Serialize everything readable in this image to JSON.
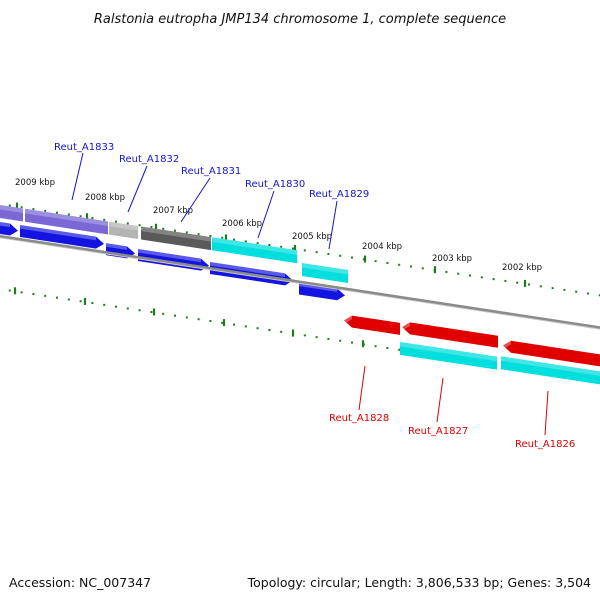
{
  "title": "Ralstonia eutropha JMP134 chromosome 1, complete sequence",
  "footer": {
    "accession": "Accession: NC_007347",
    "summary": "Topology: circular; Length: 3,806,533 bp; Genes: 3,504"
  },
  "colors": {
    "backbone": "#8a8a8a",
    "tick": "#1e7a1e",
    "forward_label": "#1414c8",
    "reverse_label": "#dc0000",
    "gene_blue": "#1414e0",
    "gene_cyan": "#00dede",
    "gene_red": "#e00000",
    "cog_purple": "#7b68d6",
    "cog_light_gray": "#b4b4b4",
    "cog_dark_gray": "#5a5a5a"
  },
  "scale_labels": [
    "2009 kbp",
    "2008 kbp",
    "2007 kbp",
    "2006 kbp",
    "2005 kbp",
    "2004 kbp",
    "2003 kbp",
    "2002 kbp"
  ],
  "forward_genes": [
    {
      "name": "Reut_A1833",
      "color": "gene_blue",
      "cog": "cog_purple"
    },
    {
      "name": "Reut_A1832",
      "color": "gene_blue",
      "cog": "cog_light_gray"
    },
    {
      "name": "Reut_A1831",
      "color": "gene_blue",
      "cog": "cog_dark_gray"
    },
    {
      "name": "Reut_A1830",
      "color": "gene_blue",
      "cog": "gene_cyan"
    },
    {
      "name": "Reut_A1829",
      "color": "gene_blue",
      "cog": "gene_cyan"
    }
  ],
  "reverse_genes": [
    {
      "name": "Reut_A1828",
      "color": "gene_red",
      "cog": "gene_cyan"
    },
    {
      "name": "Reut_A1827",
      "color": "gene_red",
      "cog": "gene_cyan"
    },
    {
      "name": "Reut_A1826",
      "color": "gene_red",
      "cog": "gene_cyan"
    }
  ]
}
